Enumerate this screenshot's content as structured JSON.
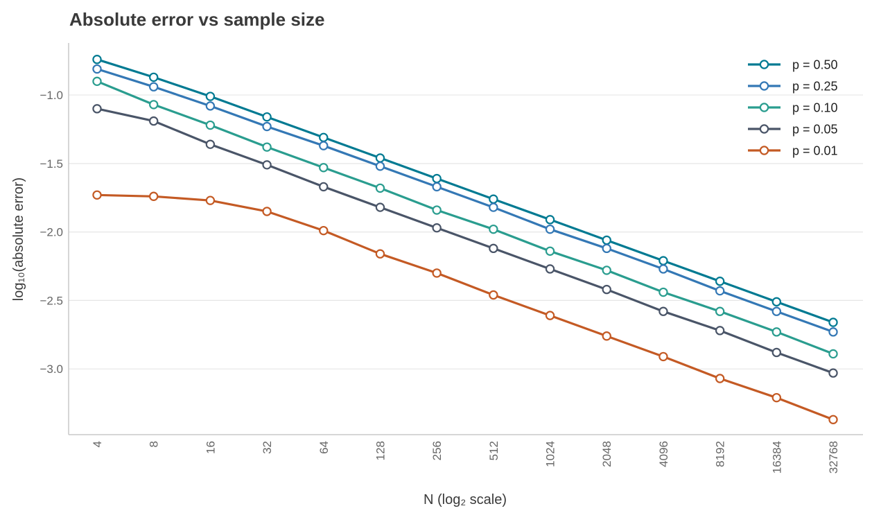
{
  "chart_data": {
    "type": "line",
    "title": "Absolute error vs sample size",
    "xlabel": "N (log₂ scale)",
    "ylabel": "log₁₀(absolute error)",
    "x": [
      4,
      8,
      16,
      32,
      64,
      128,
      256,
      512,
      1024,
      2048,
      4096,
      8192,
      16384,
      32768
    ],
    "x_tick_labels": [
      "4",
      "8",
      "16",
      "32",
      "64",
      "128",
      "256",
      "512",
      "1024",
      "2048",
      "4096",
      "8192",
      "16384",
      "32768"
    ],
    "x_scale": "log2",
    "ylim": [
      -3.48,
      -0.62
    ],
    "y_ticks": [
      -1.0,
      -1.5,
      -2.0,
      -2.5,
      -3.0
    ],
    "y_tick_labels": [
      "−1.0",
      "−1.5",
      "−2.0",
      "−2.5",
      "−3.0"
    ],
    "grid": "y",
    "legend_position": "top-right",
    "series": [
      {
        "name": "p = 0.50",
        "color": "#017a92",
        "values": [
          -0.74,
          -0.87,
          -1.01,
          -1.16,
          -1.31,
          -1.46,
          -1.61,
          -1.76,
          -1.91,
          -2.06,
          -2.21,
          -2.36,
          -2.51,
          -2.66
        ]
      },
      {
        "name": "p = 0.25",
        "color": "#3478b5",
        "values": [
          -0.81,
          -0.94,
          -1.08,
          -1.23,
          -1.37,
          -1.52,
          -1.67,
          -1.82,
          -1.98,
          -2.12,
          -2.27,
          -2.43,
          -2.58,
          -2.73
        ]
      },
      {
        "name": "p = 0.10",
        "color": "#2a9d8f",
        "values": [
          -0.9,
          -1.07,
          -1.22,
          -1.38,
          -1.53,
          -1.68,
          -1.84,
          -1.98,
          -2.14,
          -2.28,
          -2.44,
          -2.58,
          -2.73,
          -2.89
        ]
      },
      {
        "name": "p = 0.05",
        "color": "#4a5568",
        "values": [
          -1.1,
          -1.19,
          -1.36,
          -1.51,
          -1.67,
          -1.82,
          -1.97,
          -2.12,
          -2.27,
          -2.42,
          -2.58,
          -2.72,
          -2.88,
          -3.03
        ]
      },
      {
        "name": "p = 0.01",
        "color": "#c45a24",
        "values": [
          -1.73,
          -1.74,
          -1.77,
          -1.85,
          -1.99,
          -2.16,
          -2.3,
          -2.46,
          -2.61,
          -2.76,
          -2.91,
          -3.07,
          -3.21,
          -3.37
        ]
      }
    ]
  }
}
